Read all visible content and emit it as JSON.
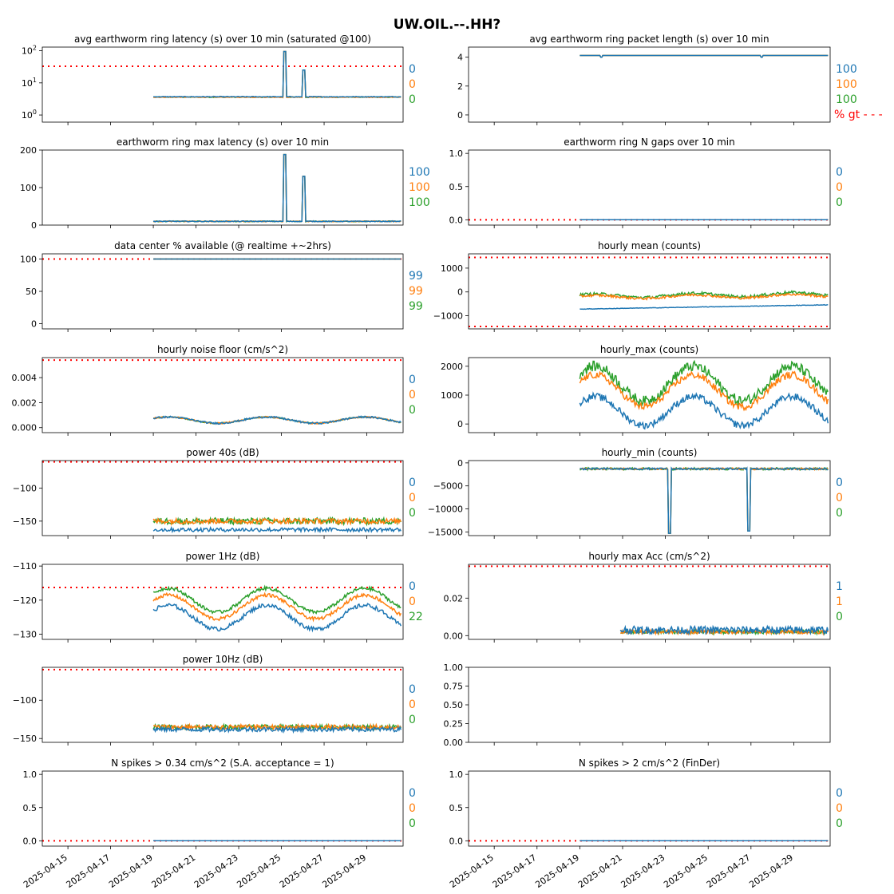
{
  "title": "UW.OIL.--.HH?",
  "colors": {
    "c0": "#1f77b4",
    "c1": "#ff7f0e",
    "c2": "#2ca02c",
    "threshold": "#ff0000"
  },
  "x_tick_labels": [
    "2025-04-15",
    "2025-04-17",
    "2025-04-19",
    "2025-04-21",
    "2025-04-23",
    "2025-04-25",
    "2025-04-27",
    "2025-04-29"
  ],
  "chart_data": [
    {
      "id": "p0",
      "type": "line",
      "title": "avg earthworm ring latency (s)   over 10 min (saturated @100)",
      "yscale": "log",
      "ylim": [
        0.6,
        130
      ],
      "yticks": [
        1,
        10,
        100
      ],
      "ytick_labels": [
        "10^0",
        "10^1",
        "10^2"
      ],
      "threshold": 33,
      "right_labels": [
        "0",
        "0",
        "0"
      ],
      "trend": {
        "start_day": 4.0,
        "base": [
          3.7,
          3.6,
          3.6
        ],
        "noise": [
          0.1,
          0.1,
          0.1
        ],
        "spikes": [
          [
            10.15,
            95
          ],
          [
            11.05,
            25
          ]
        ]
      }
    },
    {
      "id": "p1",
      "type": "line",
      "title": "avg earthworm ring packet length (s)   over 10 min",
      "ylim": [
        -0.5,
        4.7
      ],
      "yticks": [
        0,
        2,
        4
      ],
      "ytick_labels": [
        "0",
        "2",
        "4"
      ],
      "threshold": null,
      "right_labels": [
        "100",
        "100",
        "100"
      ],
      "extra_label": "% gt - - -",
      "trend": {
        "start_day": 4.0,
        "base": [
          4.12,
          4.12,
          4.12
        ],
        "noise": [
          0.0,
          0.0,
          0.0
        ],
        "dips": [
          [
            5.0,
            4.0
          ],
          [
            12.5,
            4.0
          ]
        ]
      }
    },
    {
      "id": "p2",
      "type": "line",
      "title": "earthworm ring max latency (s)   over 10 min",
      "ylim": [
        0,
        200
      ],
      "yticks": [
        0,
        100,
        200
      ],
      "ytick_labels": [
        "0",
        "100",
        "200"
      ],
      "threshold": null,
      "right_labels": [
        "100",
        "100",
        "100"
      ],
      "trend": {
        "start_day": 4.0,
        "base": [
          10,
          10,
          10
        ],
        "noise": [
          1.2,
          1.2,
          1.2
        ],
        "spikes": [
          [
            10.15,
            188
          ],
          [
            11.05,
            130
          ]
        ]
      }
    },
    {
      "id": "p3",
      "type": "line",
      "title": "earthworm ring N gaps   over 10 min",
      "ylim": [
        -0.08,
        1.05
      ],
      "yticks": [
        0,
        0.5,
        1.0
      ],
      "ytick_labels": [
        "0.0",
        "0.5",
        "1.0"
      ],
      "threshold": 0,
      "right_labels": [
        "0",
        "0",
        "0"
      ],
      "trend": {
        "start_day": 4.0,
        "base": [
          0,
          0,
          0
        ],
        "noise": [
          0,
          0,
          0
        ]
      }
    },
    {
      "id": "p4",
      "type": "line",
      "title": "data center % available (@ realtime +~2hrs)",
      "ylim": [
        -8,
        108
      ],
      "yticks": [
        0,
        50,
        100
      ],
      "ytick_labels": [
        "0",
        "50",
        "100"
      ],
      "threshold": 100,
      "right_labels": [
        "99",
        "99",
        "99"
      ],
      "trend": {
        "start_day": 4.0,
        "base": [
          100,
          100,
          100
        ],
        "noise": [
          0,
          0,
          0
        ]
      }
    },
    {
      "id": "p5",
      "type": "line",
      "title": "hourly mean (counts)",
      "ylim": [
        -1550,
        1600
      ],
      "yticks": [
        -1000,
        0,
        1000
      ],
      "ytick_labels": [
        "−1000",
        "0",
        "1000"
      ],
      "threshold": [
        1450,
        -1450
      ],
      "right_labels": [],
      "trend": {
        "start_day": 4.0,
        "base": [
          -720,
          -220,
          -170
        ],
        "noise": [
          10,
          50,
          60
        ],
        "slope": [
          180,
          60,
          80
        ],
        "wave": [
          0,
          70,
          80
        ]
      }
    },
    {
      "id": "p6",
      "type": "line",
      "title": "hourly noise floor (cm/s^2)",
      "ylim": [
        -0.0004,
        0.0056
      ],
      "yticks": [
        0,
        0.002,
        0.004
      ],
      "ytick_labels": [
        "0.000",
        "0.002",
        "0.004"
      ],
      "threshold": 0.0054,
      "right_labels": [
        "0",
        "0",
        "0"
      ],
      "trend": {
        "start_day": 4.0,
        "base": [
          0.0006,
          0.0006,
          0.0006
        ],
        "noise": [
          7e-05,
          5e-05,
          5e-05
        ],
        "wave": [
          0.00025,
          0.00025,
          0.00025
        ]
      }
    },
    {
      "id": "p7",
      "type": "line",
      "title": "hourly_max (counts)",
      "ylim": [
        -300,
        2300
      ],
      "yticks": [
        0,
        1000,
        2000
      ],
      "ytick_labels": [
        "0",
        "1000",
        "2000"
      ],
      "threshold": null,
      "right_labels": [],
      "trend": {
        "start_day": 4.0,
        "base": [
          450,
          1150,
          1400
        ],
        "noise": [
          120,
          120,
          180
        ],
        "wave": [
          500,
          550,
          600
        ]
      }
    },
    {
      "id": "p8",
      "type": "line",
      "title": "power 40s (dB)",
      "ylim": [
        -172,
        -58
      ],
      "yticks": [
        -100,
        -150
      ],
      "ytick_labels": [
        "−100",
        "−150"
      ],
      "threshold": -60,
      "right_labels": [
        "0",
        "0",
        "0"
      ],
      "trend": {
        "start_day": 4.0,
        "base": [
          -163,
          -150,
          -150
        ],
        "noise": [
          3,
          4,
          5
        ]
      }
    },
    {
      "id": "p9",
      "type": "line",
      "title": "hourly_min (counts)",
      "ylim": [
        -15800,
        500
      ],
      "yticks": [
        0,
        -5000,
        -10000,
        -15000
      ],
      "ytick_labels": [
        "0",
        "−5000",
        "−10000",
        "−15000"
      ],
      "threshold": null,
      "right_labels": [
        "0",
        "0",
        "0"
      ],
      "trend": {
        "start_day": 4.0,
        "base": [
          -1300,
          -1300,
          -1300
        ],
        "noise": [
          200,
          200,
          250
        ],
        "spikes": [
          [
            8.2,
            -15300
          ],
          [
            11.9,
            -14800
          ]
        ]
      }
    },
    {
      "id": "p10",
      "type": "line",
      "title": "power 1Hz (dB)",
      "ylim": [
        -131.5,
        -109.5
      ],
      "yticks": [
        -110,
        -120,
        -130
      ],
      "ytick_labels": [
        "−110",
        "−120",
        "−130"
      ],
      "threshold": -116.3,
      "right_labels": [
        "0",
        "0",
        "22"
      ],
      "trend": {
        "start_day": 4.0,
        "base": [
          -125,
          -122,
          -120
        ],
        "noise": [
          0.6,
          0.5,
          0.5
        ],
        "wave": [
          3.5,
          3.5,
          3.5
        ]
      }
    },
    {
      "id": "p11",
      "type": "line",
      "title": "hourly max Acc (cm/s^2)",
      "ylim": [
        -0.002,
        0.038
      ],
      "yticks": [
        0,
        0.02
      ],
      "ytick_labels": [
        "0.00",
        "0.02"
      ],
      "threshold": 0.037,
      "right_labels": [
        "1",
        "1",
        "0"
      ],
      "trend": {
        "start_day": 5.9,
        "base": [
          0.003,
          0.002,
          0.002
        ],
        "noise": [
          0.002,
          0.001,
          0.001
        ]
      }
    },
    {
      "id": "p12",
      "type": "line",
      "title": "power 10Hz (dB)",
      "ylim": [
        -155,
        -57
      ],
      "yticks": [
        -100,
        -150
      ],
      "ytick_labels": [
        "−100",
        "−150"
      ],
      "threshold": -60,
      "right_labels": [
        "0",
        "0",
        "0"
      ],
      "trend": {
        "start_day": 4.0,
        "base": [
          -138,
          -135,
          -135
        ],
        "noise": [
          3,
          3,
          3
        ]
      }
    },
    {
      "id": "p13",
      "type": "line",
      "title": "",
      "ylim": [
        0,
        1
      ],
      "yticks": [
        0,
        0.25,
        0.5,
        0.75,
        1.0
      ],
      "ytick_labels": [
        "0.00",
        "0.25",
        "0.50",
        "0.75",
        "1.00"
      ],
      "threshold": null,
      "right_labels": [],
      "empty": true
    },
    {
      "id": "p14",
      "type": "line",
      "title": "N spikes > 0.34 cm/s^2 (S.A. acceptance = 1)",
      "ylim": [
        -0.08,
        1.05
      ],
      "yticks": [
        0,
        0.5,
        1.0
      ],
      "ytick_labels": [
        "0.0",
        "0.5",
        "1.0"
      ],
      "threshold": 0,
      "right_labels": [
        "0",
        "0",
        "0"
      ],
      "trend": {
        "start_day": 4.0,
        "base": [
          0,
          0,
          0
        ],
        "noise": [
          0,
          0,
          0
        ]
      }
    },
    {
      "id": "p15",
      "type": "line",
      "title": "N spikes > 2 cm/s^2 (FinDer)",
      "ylim": [
        -0.08,
        1.05
      ],
      "yticks": [
        0,
        0.5,
        1.0
      ],
      "ytick_labels": [
        "0.0",
        "0.5",
        "1.0"
      ],
      "threshold": 0,
      "right_labels": [
        "0",
        "0",
        "0"
      ],
      "trend": {
        "start_day": 4.0,
        "base": [
          0,
          0,
          0
        ],
        "noise": [
          0,
          0,
          0
        ]
      }
    }
  ]
}
